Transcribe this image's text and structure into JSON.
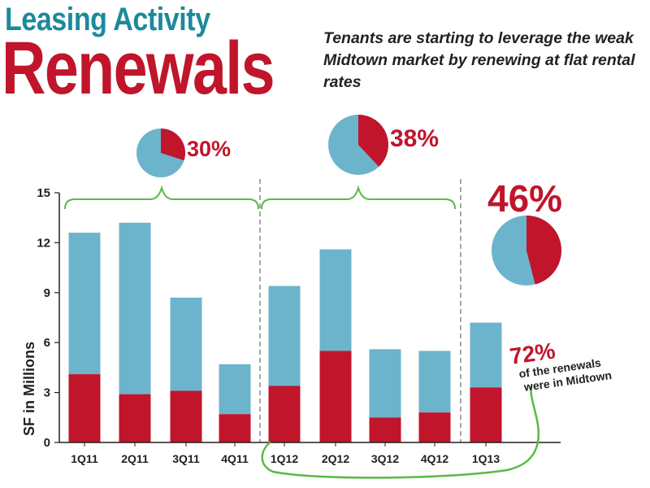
{
  "header": {
    "kicker": "Leasing Activity",
    "title": "Renewals",
    "subtitle": "Tenants are starting to leverage the weak Midtown market by renewing at flat rental rates"
  },
  "colors": {
    "midtown": "#c0152b",
    "other": "#6cb4cc",
    "bracket": "#59b944",
    "kicker": "#1b8a9a",
    "axis": "#231f20"
  },
  "annotation": {
    "percent": "72%",
    "line1": "of the renewals",
    "line2": "were in Midtown"
  },
  "chart_data": {
    "type": "bar",
    "stacked": true,
    "ylabel": "SF in Millions",
    "ylim": [
      0,
      15
    ],
    "yticks": [
      "0",
      "3",
      "6",
      "9",
      "12",
      "15"
    ],
    "grid": false,
    "categories": [
      "1Q11",
      "2Q11",
      "3Q11",
      "4Q11",
      "1Q12",
      "2Q12",
      "3Q12",
      "4Q12",
      "1Q13"
    ],
    "series": [
      {
        "key": "midtown",
        "values": [
          4.1,
          2.9,
          3.1,
          1.7,
          3.4,
          5.5,
          1.5,
          1.8,
          3.3
        ]
      },
      {
        "key": "other",
        "values": [
          8.5,
          10.3,
          5.6,
          3.0,
          6.0,
          6.1,
          4.1,
          3.7,
          3.9
        ]
      }
    ],
    "pies": [
      {
        "label": "30%",
        "value": 30,
        "covers": [
          "1Q11",
          "2Q11",
          "3Q11",
          "4Q11"
        ]
      },
      {
        "label": "38%",
        "value": 38,
        "covers": [
          "1Q12",
          "2Q12",
          "3Q12",
          "4Q12"
        ]
      },
      {
        "label": "46%",
        "value": 46,
        "covers": [
          "1Q13"
        ]
      }
    ]
  }
}
